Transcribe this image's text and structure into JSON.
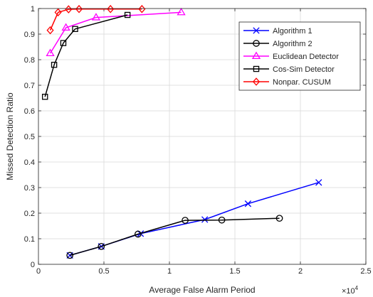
{
  "chart_data": {
    "type": "line",
    "xlabel": "Average False Alarm Period",
    "ylabel": "Missed Detection Ratio",
    "x_exponent_label": "×10",
    "x_exponent_power": "4",
    "x_multiplier": 10000,
    "xlim": [
      0,
      25000
    ],
    "ylim": [
      0,
      1
    ],
    "x_ticks": [
      0,
      5000,
      10000,
      15000,
      20000,
      25000
    ],
    "x_tick_labels": [
      "0",
      "0.5",
      "1",
      "1.5",
      "2",
      "2.5"
    ],
    "y_ticks": [
      0,
      0.1,
      0.2,
      0.3,
      0.4,
      0.5,
      0.6,
      0.7,
      0.8,
      0.9,
      1
    ],
    "y_tick_labels": [
      "0",
      "0.1",
      "0.2",
      "0.3",
      "0.4",
      "0.5",
      "0.6",
      "0.7",
      "0.8",
      "0.9",
      "1"
    ],
    "grid": true,
    "legend_position": "top-right",
    "series": [
      {
        "name": "Algorithm 1",
        "color": "#0000ff",
        "marker": "x",
        "x": [
          2400,
          4800,
          7800,
          12700,
          16000,
          21400
        ],
        "y": [
          0.035,
          0.07,
          0.12,
          0.175,
          0.237,
          0.32
        ]
      },
      {
        "name": "Algorithm 2",
        "color": "#000000",
        "marker": "circle",
        "x": [
          2400,
          4800,
          7600,
          11200,
          14000,
          18400
        ],
        "y": [
          0.035,
          0.07,
          0.118,
          0.172,
          0.173,
          0.18
        ]
      },
      {
        "name": "Euclidean Detector",
        "color": "#ff00ff",
        "marker": "triangle",
        "x": [
          900,
          2100,
          4400,
          10900
        ],
        "y": [
          0.825,
          0.925,
          0.965,
          0.985
        ]
      },
      {
        "name": "Cos-Sim Detector",
        "color": "#000000",
        "marker": "square",
        "x": [
          500,
          1200,
          1900,
          2800,
          6800
        ],
        "y": [
          0.655,
          0.78,
          0.865,
          0.92,
          0.975
        ]
      },
      {
        "name": "Nonpar. CUSUM",
        "color": "#ff0000",
        "marker": "diamond",
        "x": [
          900,
          1500,
          2300,
          3100,
          5500,
          7900
        ],
        "y": [
          0.915,
          0.985,
          0.997,
          0.998,
          0.998,
          0.998
        ]
      }
    ]
  }
}
